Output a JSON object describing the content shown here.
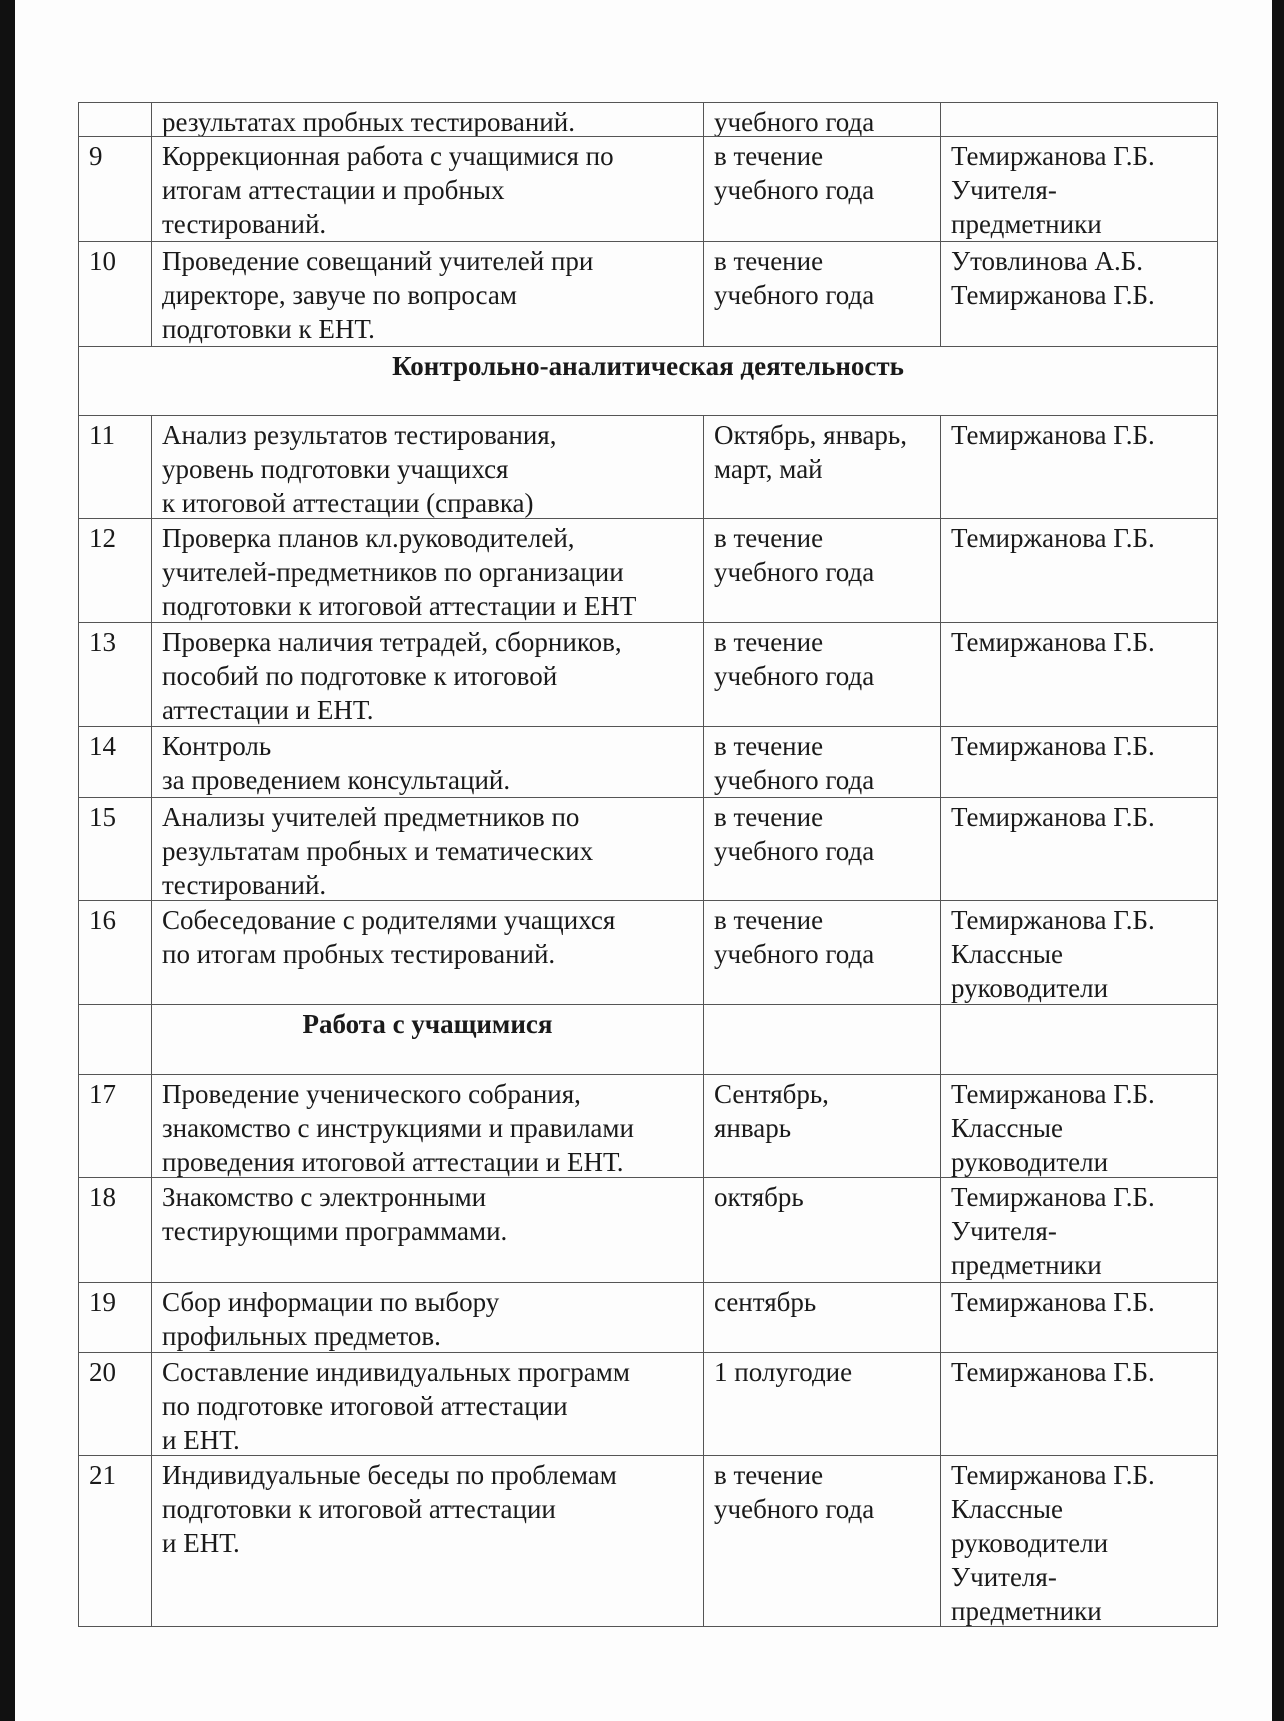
{
  "document": {
    "rows": [
      {
        "type": "item",
        "num": "",
        "task": "результатах пробных тестирований.",
        "term": "учебного года",
        "responsible": ""
      },
      {
        "type": "item",
        "num": "9",
        "task": "Коррекционная работа с учащимися по\nитогам аттестации и пробных\nтестирований.",
        "term": "в течение\nучебного года",
        "responsible": "Темиржанова Г.Б.\nУчителя-\nпредметники"
      },
      {
        "type": "item",
        "num": "10",
        "task": "Проведение совещаний учителей при\nдиректоре, завуче по вопросам\nподготовки к ЕНТ.",
        "term": "в течение\nучебного года",
        "responsible": "Утовлинова А.Б.\nТемиржанова Г.Б."
      },
      {
        "type": "section-full",
        "title": "Контрольно-аналитическая деятельность"
      },
      {
        "type": "item",
        "num": "11",
        "task": "Анализ результатов тестирования,\nуровень подготовки учащихся\n к  итоговой аттестации  (справка)",
        "term": "Октябрь, январь,\nмарт, май",
        "responsible": "Темиржанова Г.Б."
      },
      {
        "type": "item",
        "num": "12",
        "task": "Проверка планов кл.руководителей,\nучителей-предметников по  организации\nподготовки к итоговой аттестации и ЕНТ",
        "term": "в течение\nучебного года",
        "responsible": "Темиржанова Г.Б."
      },
      {
        "type": "item",
        "num": "13",
        "task": "Проверка наличия тетрадей, сборников,\nпособий  по подготовке к итоговой\nаттестации и   ЕНТ.",
        "term": "в течение\nучебного года",
        "responsible": "Темиржанова Г.Б."
      },
      {
        "type": "item",
        "num": "14",
        "task": "Контроль\nза  проведением  консультаций.",
        "term": "в течение\nучебного года",
        "responsible": "Темиржанова Г.Б."
      },
      {
        "type": "item",
        "num": "15",
        "task": "Анализы учителей предметников по\nрезультатам пробных и тематических\nтестирований.",
        "term": "в течение\nучебного года",
        "responsible": "Темиржанова Г.Б."
      },
      {
        "type": "item",
        "num": "16",
        "task": "Собеседование с родителями учащихся\nпо итогам пробных тестирований.",
        "term": "в течение\nучебного года",
        "responsible": "Темиржанова Г.Б.\nКлассные\nруководители"
      },
      {
        "type": "section-col",
        "title": "Работа с учащимися"
      },
      {
        "type": "item",
        "num": "17",
        "task": "Проведение ученического собрания,\nзнакомство с инструкциями и правилами\nпроведения итоговой аттестации и ЕНТ.",
        "term": "Сентябрь,\nянварь",
        "responsible": "Темиржанова Г.Б.\nКлассные\nруководители"
      },
      {
        "type": "item",
        "num": "18",
        "task": "Знакомство с электронными\nтестирующими программами.",
        "term": "октябрь",
        "responsible": "Темиржанова Г.Б.\nУчителя-\nпредметники"
      },
      {
        "type": "item",
        "num": "19",
        "task": "Сбор информации по выбору\nпрофильных предметов.",
        "term": "сентябрь",
        "responsible": "Темиржанова Г.Б."
      },
      {
        "type": "item",
        "num": "20",
        "task": "Составление индивидуальных программ\nпо подготовке  итоговой аттестации\nи  ЕНТ.",
        "term": "1 полугодие",
        "responsible": "Темиржанова Г.Б."
      },
      {
        "type": "item",
        "num": "21",
        "task": "Индивидуальные беседы по проблемам\nподготовки к итоговой аттестации\nи  ЕНТ.",
        "term": "в течение\nучебного года",
        "responsible": "Темиржанова Г.Б.\nКлассные\nруководители\nУчителя-\nпредметники"
      }
    ]
  }
}
